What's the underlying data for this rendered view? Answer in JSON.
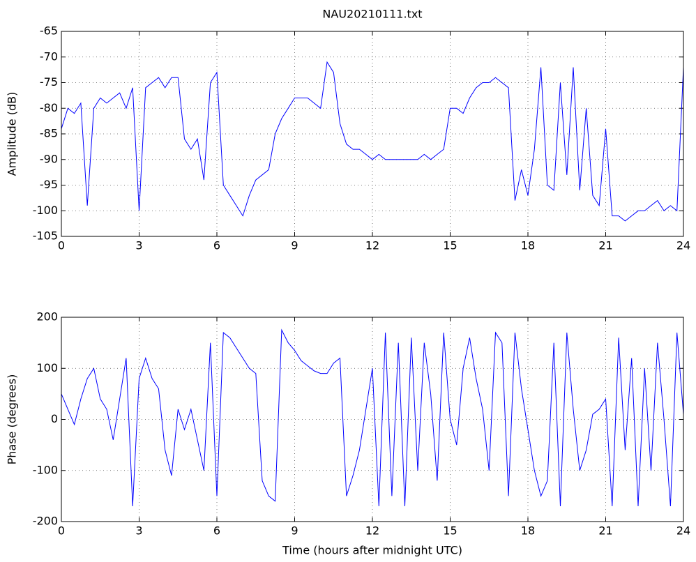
{
  "chart_data": [
    {
      "type": "line",
      "title": "NAU20210111.txt",
      "ylabel": "Amplitude (dB)",
      "color": "#0000ff",
      "grid": true,
      "x": [
        0,
        0.25,
        0.5,
        0.75,
        1,
        1.25,
        1.5,
        1.75,
        2,
        2.25,
        2.5,
        2.75,
        3,
        3.25,
        3.5,
        3.75,
        4,
        4.25,
        4.5,
        4.75,
        5,
        5.25,
        5.5,
        5.75,
        6,
        6.25,
        6.5,
        6.75,
        7,
        7.25,
        7.5,
        7.75,
        8,
        8.25,
        8.5,
        8.75,
        9,
        9.25,
        9.5,
        9.75,
        10,
        10.25,
        10.5,
        10.75,
        11,
        11.25,
        11.5,
        11.75,
        12,
        12.25,
        12.5,
        12.75,
        13,
        13.25,
        13.5,
        13.75,
        14,
        14.25,
        14.5,
        14.75,
        15,
        15.25,
        15.5,
        15.75,
        16,
        16.25,
        16.5,
        16.75,
        17,
        17.25,
        17.5,
        17.75,
        18,
        18.25,
        18.5,
        18.75,
        19,
        19.25,
        19.5,
        19.75,
        20,
        20.25,
        20.5,
        20.75,
        21,
        21.25,
        21.5,
        21.75,
        22,
        22.25,
        22.5,
        22.75,
        23,
        23.25,
        23.5,
        23.75,
        24
      ],
      "values": [
        -84,
        -80,
        -81,
        -79,
        -99,
        -80,
        -78,
        -79,
        -78,
        -77,
        -80,
        -76,
        -100,
        -76,
        -75,
        -74,
        -76,
        -74,
        -74,
        -86,
        -88,
        -86,
        -94,
        -75,
        -73,
        -95,
        -97,
        -99,
        -101,
        -97,
        -94,
        -93,
        -92,
        -85,
        -82,
        -80,
        -78,
        -78,
        -78,
        -79,
        -80,
        -71,
        -73,
        -83,
        -87,
        -88,
        -88,
        -89,
        -90,
        -89,
        -90,
        -90,
        -90,
        -90,
        -90,
        -90,
        -89,
        -90,
        -89,
        -88,
        -80,
        -80,
        -81,
        -78,
        -76,
        -75,
        -75,
        -74,
        -75,
        -76,
        -98,
        -92,
        -97,
        -88,
        -72,
        -95,
        -96,
        -75,
        -93,
        -72,
        -96,
        -80,
        -97,
        -99,
        -84,
        -101,
        -101,
        -102,
        -101,
        -100,
        -100,
        -99,
        -98,
        -100,
        -99,
        -100,
        -72
      ],
      "xlim": [
        0,
        24
      ],
      "xticks": [
        0,
        3,
        6,
        9,
        12,
        15,
        18,
        21,
        24
      ],
      "ylim": [
        -105,
        -65
      ],
      "yticks": [
        -105,
        -100,
        -95,
        -90,
        -85,
        -80,
        -75,
        -70,
        -65
      ]
    },
    {
      "type": "line",
      "xlabel": "Time (hours after midnight UTC)",
      "ylabel": "Phase (degrees)",
      "color": "#0000ff",
      "grid": true,
      "x": [
        0,
        0.25,
        0.5,
        0.75,
        1,
        1.25,
        1.5,
        1.75,
        2,
        2.25,
        2.5,
        2.75,
        3,
        3.25,
        3.5,
        3.75,
        4,
        4.25,
        4.5,
        4.75,
        5,
        5.25,
        5.5,
        5.75,
        6,
        6.25,
        6.5,
        6.75,
        7,
        7.25,
        7.5,
        7.75,
        8,
        8.25,
        8.5,
        8.75,
        9,
        9.25,
        9.5,
        9.75,
        10,
        10.25,
        10.5,
        10.75,
        11,
        11.25,
        11.5,
        11.75,
        12,
        12.25,
        12.5,
        12.75,
        13,
        13.25,
        13.5,
        13.75,
        14,
        14.25,
        14.5,
        14.75,
        15,
        15.25,
        15.5,
        15.75,
        16,
        16.25,
        16.5,
        16.75,
        17,
        17.25,
        17.5,
        17.75,
        18,
        18.25,
        18.5,
        18.75,
        19,
        19.25,
        19.5,
        19.75,
        20,
        20.25,
        20.5,
        20.75,
        21,
        21.25,
        21.5,
        21.75,
        22,
        22.25,
        22.5,
        22.75,
        23,
        23.25,
        23.5,
        23.75,
        24
      ],
      "values": [
        50,
        20,
        -10,
        40,
        80,
        100,
        40,
        20,
        -40,
        40,
        120,
        -170,
        80,
        120,
        80,
        60,
        -60,
        -110,
        20,
        -20,
        20,
        -40,
        -100,
        150,
        -150,
        170,
        160,
        140,
        120,
        100,
        90,
        -120,
        -150,
        -160,
        175,
        150,
        135,
        115,
        105,
        95,
        90,
        90,
        110,
        120,
        -150,
        -110,
        -60,
        20,
        100,
        -170,
        170,
        -150,
        150,
        -170,
        160,
        -100,
        150,
        50,
        -120,
        170,
        0,
        -50,
        100,
        160,
        80,
        20,
        -100,
        170,
        150,
        -150,
        170,
        60,
        -20,
        -100,
        -150,
        -120,
        150,
        -170,
        170,
        20,
        -100,
        -60,
        10,
        20,
        40,
        -170,
        160,
        -60,
        120,
        -170,
        100,
        -100,
        150,
        0,
        -170,
        170,
        10
      ],
      "xlim": [
        0,
        24
      ],
      "xticks": [
        0,
        3,
        6,
        9,
        12,
        15,
        18,
        21,
        24
      ],
      "ylim": [
        -200,
        200
      ],
      "yticks": [
        -200,
        -100,
        0,
        100,
        200
      ]
    }
  ]
}
